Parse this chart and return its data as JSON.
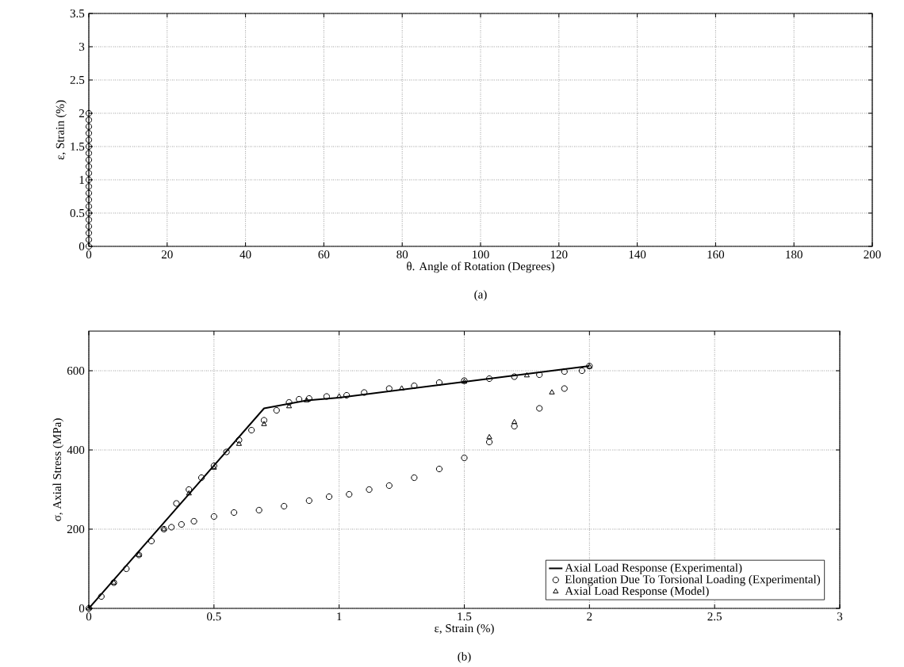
{
  "chart_data": [
    {
      "type": "scatter",
      "xlabel": "θ. Angle of Rotation (Degrees)",
      "ylabel": "ε, Strain (%)",
      "annotations": [
        "(a)"
      ],
      "xlim": [
        0,
        200
      ],
      "ylim": [
        0,
        3.5
      ],
      "xticks": [
        0,
        20,
        40,
        60,
        80,
        100,
        120,
        140,
        160,
        180,
        200
      ],
      "yticks": [
        0,
        0.5,
        1,
        1.5,
        2,
        2.5,
        3,
        3.5
      ],
      "grid": true,
      "marker": "circle",
      "series": [
        {
          "color": "#000000",
          "x": [
            0,
            0,
            0,
            0,
            0,
            0,
            0,
            0,
            0,
            0,
            0,
            0,
            0,
            0,
            0,
            0,
            0,
            0,
            0,
            0,
            0
          ],
          "values": [
            0,
            0.1,
            0.2,
            0.3,
            0.4,
            0.5,
            0.6,
            0.7,
            0.8,
            0.9,
            1.0,
            1.1,
            1.2,
            1.3,
            1.4,
            1.5,
            1.6,
            1.7,
            1.8,
            1.9,
            2.0
          ]
        }
      ]
    },
    {
      "type": "line",
      "xlabel": "ε, Strain (%)",
      "ylabel": "σ, Axial Stress (MPa)",
      "annotations": [
        "(b)"
      ],
      "xlim": [
        0,
        3
      ],
      "ylim": [
        0,
        700
      ],
      "xticks": [
        0,
        0.5,
        1,
        1.5,
        2,
        2.5,
        3
      ],
      "yticks": [
        0,
        200,
        400,
        600
      ],
      "grid": true,
      "legend": "bottom right",
      "series": [
        {
          "name": "Axial Load Response (Experimental)",
          "type": "line",
          "marker": "none",
          "line_style": "solid",
          "color": "#000000",
          "x": [
            0,
            0.7,
            0.87,
            1.0,
            1.5,
            2.0
          ],
          "values": [
            0,
            505,
            525,
            532,
            572,
            612
          ]
        },
        {
          "name": "Elongation Due To Torsional Loading (Experimental)",
          "type": "scatter",
          "marker": "circle",
          "color": "#000000",
          "x": [
            0,
            0.05,
            0.1,
            0.15,
            0.2,
            0.25,
            0.3,
            0.33,
            0.37,
            0.42,
            0.5,
            0.58,
            0.68,
            0.78,
            0.88,
            0.96,
            1.04,
            1.12,
            1.2,
            1.3,
            1.4,
            1.5,
            1.6,
            1.7,
            1.8,
            1.9,
            1.97,
            2.0,
            1.9,
            1.8,
            1.7,
            1.6,
            1.5,
            1.4,
            1.3,
            1.2,
            1.1,
            1.03,
            0.95,
            0.88,
            0.84,
            0.8,
            0.75,
            0.7,
            0.65,
            0.6,
            0.55,
            0.5,
            0.45,
            0.4,
            0.35
          ],
          "values": [
            0,
            30,
            65,
            100,
            135,
            170,
            200,
            205,
            212,
            220,
            232,
            242,
            248,
            258,
            272,
            282,
            288,
            300,
            310,
            330,
            352,
            380,
            420,
            460,
            505,
            555,
            600,
            612,
            598,
            590,
            585,
            580,
            575,
            570,
            562,
            555,
            545,
            538,
            535,
            530,
            528,
            520,
            500,
            475,
            450,
            425,
            395,
            360,
            330,
            300,
            265
          ]
        },
        {
          "name": "Axial Load Response (Model)",
          "type": "scatter",
          "marker": "triangle",
          "color": "#000000",
          "x": [
            0,
            0.1,
            0.2,
            0.3,
            0.4,
            0.5,
            0.6,
            0.7,
            0.8,
            0.87,
            1.0,
            1.25,
            1.5,
            1.75,
            2.0,
            1.85,
            1.7,
            1.6
          ],
          "values": [
            0,
            65,
            135,
            200,
            290,
            355,
            415,
            465,
            510,
            525,
            535,
            555,
            572,
            588,
            610,
            545,
            470,
            432
          ]
        }
      ]
    }
  ]
}
